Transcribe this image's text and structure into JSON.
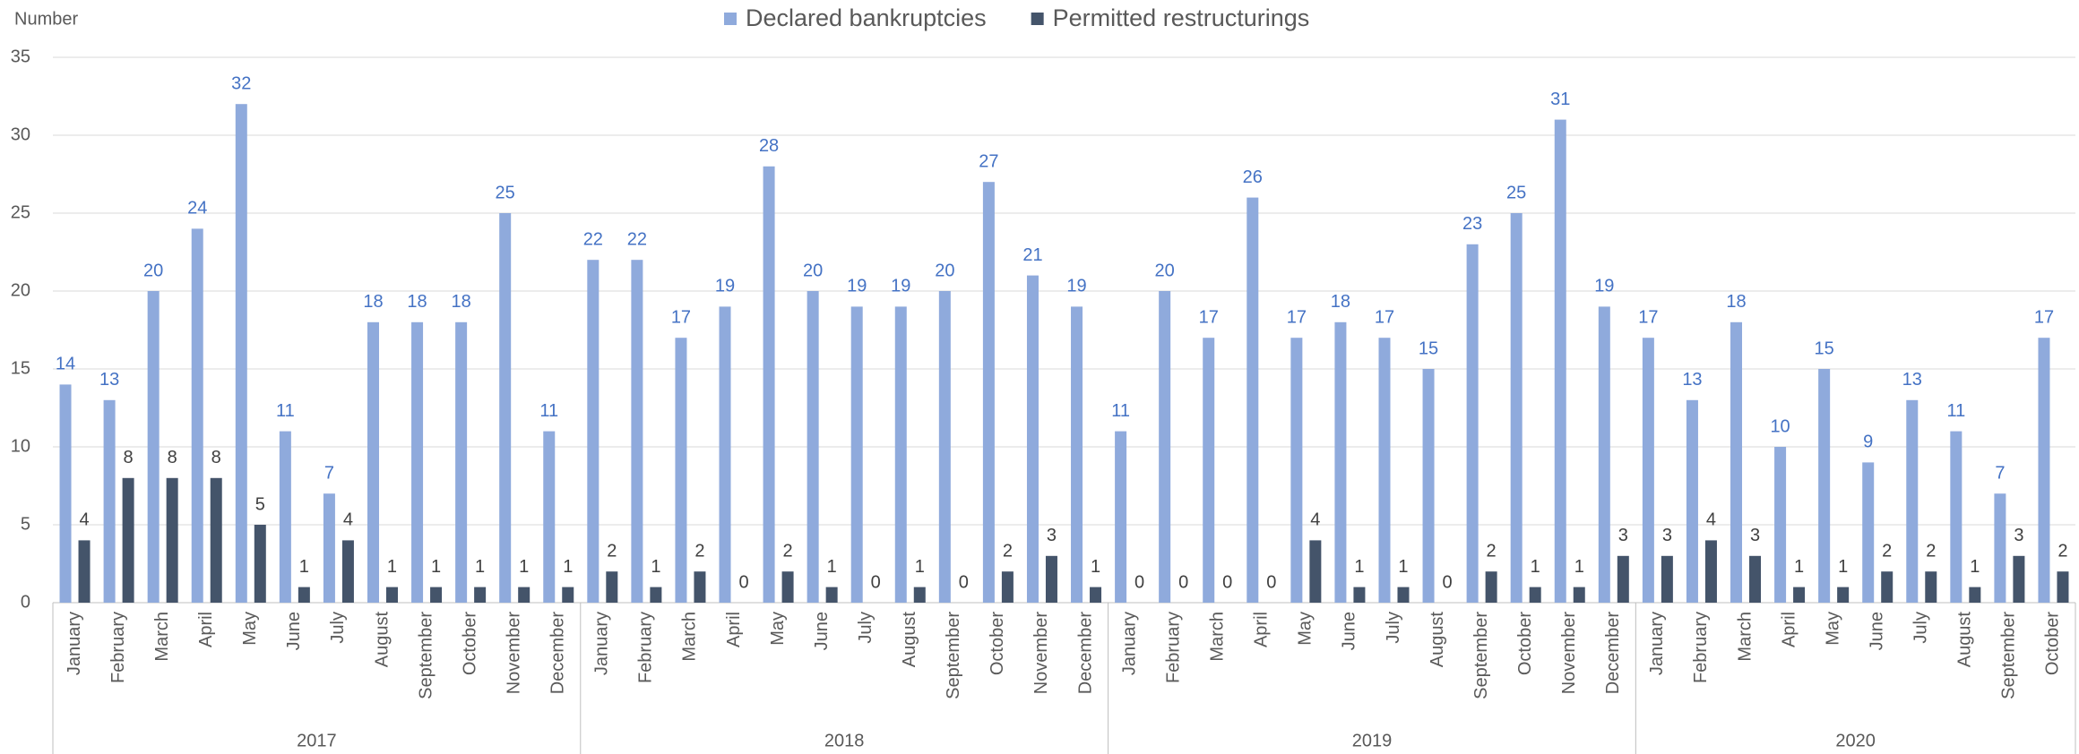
{
  "chart_data": {
    "type": "bar",
    "y_label": "Number",
    "categories": [
      "January",
      "February",
      "March",
      "April",
      "May",
      "June",
      "July",
      "August",
      "September",
      "October",
      "November",
      "December",
      "January",
      "February",
      "March",
      "April",
      "May",
      "June",
      "July",
      "August",
      "September",
      "October",
      "November",
      "December",
      "January",
      "February",
      "March",
      "April",
      "May",
      "June",
      "July",
      "August",
      "September",
      "October",
      "November",
      "December",
      "January",
      "February",
      "March",
      "April",
      "May",
      "June",
      "July",
      "August",
      "September",
      "October"
    ],
    "category_groups": [
      {
        "label": "2017",
        "span": 12
      },
      {
        "label": "2018",
        "span": 12
      },
      {
        "label": "2019",
        "span": 12
      },
      {
        "label": "2020",
        "span": 10
      }
    ],
    "series": [
      {
        "name": "Declared bankruptcies",
        "color": "#8faadc",
        "values": [
          14,
          13,
          20,
          24,
          32,
          11,
          7,
          18,
          18,
          18,
          25,
          11,
          22,
          22,
          17,
          19,
          28,
          20,
          19,
          19,
          20,
          27,
          21,
          19,
          11,
          20,
          17,
          26,
          17,
          18,
          17,
          15,
          23,
          25,
          31,
          19,
          17,
          13,
          18,
          10,
          15,
          9,
          13,
          11,
          7,
          17
        ]
      },
      {
        "name": "Permitted restructurings",
        "color": "#44546a",
        "values": [
          4,
          8,
          8,
          8,
          5,
          1,
          4,
          1,
          1,
          1,
          1,
          1,
          2,
          1,
          2,
          0,
          2,
          1,
          0,
          1,
          0,
          2,
          3,
          1,
          0,
          0,
          0,
          0,
          4,
          1,
          1,
          0,
          2,
          1,
          1,
          3,
          3,
          4,
          3,
          1,
          1,
          2,
          2,
          1,
          3,
          2
        ]
      }
    ],
    "ylim": [
      0,
      35
    ],
    "yticks": [
      0,
      5,
      10,
      15,
      20,
      25,
      30,
      35
    ],
    "grid": true,
    "legend": "top"
  }
}
